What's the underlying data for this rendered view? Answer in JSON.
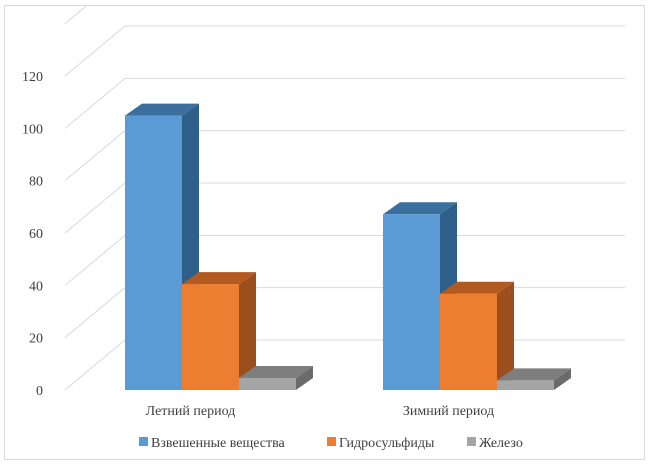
{
  "chart_data": {
    "type": "bar",
    "style": "3d-clustered-column",
    "categories": [
      "Летний период",
      "Зимний период"
    ],
    "series": [
      {
        "name": "Взвешенные вещества",
        "values": [
          114,
          73
        ],
        "color": "#5b9bd5",
        "side": "#2e5f89",
        "top": "#3b6f9e"
      },
      {
        "name": "Гидросульфиды",
        "values": [
          44,
          40
        ],
        "color": "#ed7d31",
        "side": "#9c4f1c",
        "top": "#b35a21"
      },
      {
        "name": "Железо",
        "values": [
          5,
          4
        ],
        "color": "#a5a5a5",
        "side": "#6b6b6b",
        "top": "#7e7e7e"
      }
    ],
    "yticks": [
      0,
      20,
      40,
      60,
      80,
      100,
      120
    ],
    "ylim": [
      0,
      140
    ],
    "title": "",
    "xlabel": "",
    "ylabel": "",
    "grid": true,
    "legend_position": "bottom"
  }
}
